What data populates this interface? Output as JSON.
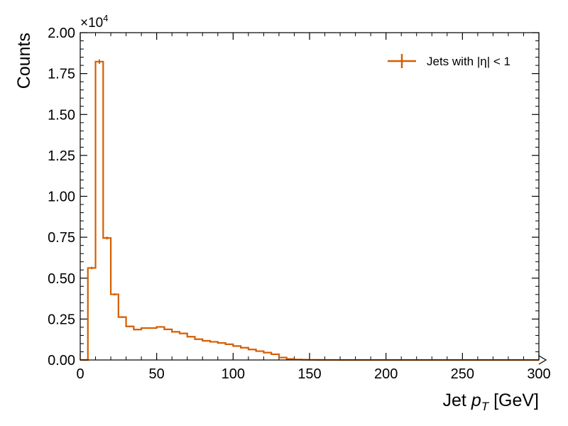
{
  "chart_data": {
    "type": "histogram",
    "title": "",
    "xlabel": "Jet p_T [GeV]",
    "xlabel_parts": {
      "prefix": "Jet ",
      "symbol": "p",
      "subscript": "T",
      "suffix": " [GeV]"
    },
    "ylabel": "Counts",
    "x_range": [
      0,
      300
    ],
    "y_range": [
      0,
      20000
    ],
    "y_scale_note": "×10^4",
    "y_scale_base": "×10",
    "y_scale_exponent": "4",
    "x_ticks": [
      {
        "value": 0,
        "label": "0"
      },
      {
        "value": 50,
        "label": "50"
      },
      {
        "value": 100,
        "label": "100"
      },
      {
        "value": 150,
        "label": "150"
      },
      {
        "value": 200,
        "label": "200"
      },
      {
        "value": 250,
        "label": "250"
      },
      {
        "value": 300,
        "label": "300"
      }
    ],
    "y_ticks": [
      {
        "value": 0,
        "label": "0.00"
      },
      {
        "value": 2500,
        "label": "0.25"
      },
      {
        "value": 5000,
        "label": "0.50"
      },
      {
        "value": 7500,
        "label": "0.75"
      },
      {
        "value": 10000,
        "label": "1.00"
      },
      {
        "value": 12500,
        "label": "1.25"
      },
      {
        "value": 15000,
        "label": "1.50"
      },
      {
        "value": 17500,
        "label": "1.75"
      },
      {
        "value": 20000,
        "label": "2.00"
      }
    ],
    "series": [
      {
        "name": "Jets with |η| < 1",
        "color": "#d55e00",
        "bin_edges": [
          0,
          5,
          10,
          15,
          20,
          25,
          30,
          35,
          40,
          45,
          50,
          55,
          60,
          65,
          70,
          75,
          80,
          85,
          90,
          95,
          100,
          105,
          110,
          115,
          120,
          125,
          130,
          135,
          140,
          145,
          150,
          155,
          160,
          165,
          170,
          175,
          180,
          185,
          190,
          195,
          200,
          205,
          210,
          215,
          220,
          225,
          230,
          235,
          240,
          245,
          250,
          255,
          260,
          265,
          270,
          275,
          280,
          285,
          290,
          295,
          300
        ],
        "counts": [
          0,
          5620,
          18230,
          7450,
          4010,
          2620,
          2050,
          1860,
          1950,
          1950,
          2020,
          1870,
          1720,
          1620,
          1420,
          1270,
          1170,
          1110,
          1040,
          960,
          850,
          750,
          640,
          540,
          450,
          350,
          150,
          60,
          30,
          15,
          8,
          5,
          3,
          2,
          1,
          1,
          1,
          0,
          0,
          0,
          0,
          0,
          0,
          0,
          0,
          0,
          0,
          0,
          0,
          0,
          0,
          0,
          0,
          0,
          0,
          0,
          0,
          0,
          0,
          0
        ],
        "errors": [
          0,
          75,
          135,
          86,
          63,
          51,
          45,
          43,
          44,
          44,
          45,
          43,
          41,
          40,
          38,
          36,
          34,
          33,
          32,
          31,
          29,
          27,
          25,
          23,
          21,
          19,
          12,
          8,
          5,
          4,
          3,
          2,
          2,
          1,
          1,
          1,
          1,
          0,
          0,
          0,
          0,
          0,
          0,
          0,
          0,
          0,
          0,
          0,
          0,
          0,
          0,
          0,
          0,
          0,
          0,
          0,
          0,
          0,
          0,
          0
        ]
      }
    ],
    "legend": {
      "placement": "top-right",
      "label": "Jets with |η| < 1"
    },
    "grid": false,
    "overflow_marker": true
  }
}
